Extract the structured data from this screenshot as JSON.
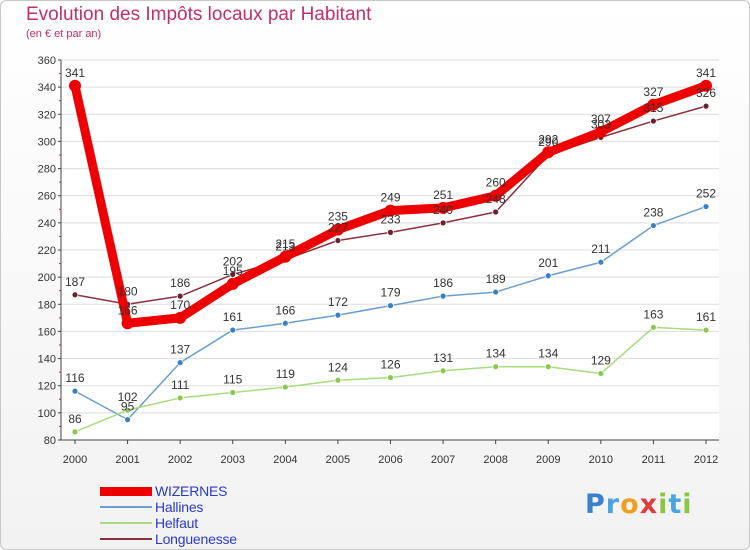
{
  "header": {
    "title": "Evolution des Impôts locaux par Habitant",
    "subtitle": "(en € et par an)"
  },
  "logo": {
    "letters": [
      {
        "char": "P",
        "color": "#3a7fd0"
      },
      {
        "char": "r",
        "color": "#4aa4e0"
      },
      {
        "char": "o",
        "color": "#f0a020"
      },
      {
        "char": "x",
        "color": "#e23b3b"
      },
      {
        "char": "i",
        "color": "#8cc63f"
      },
      {
        "char": "t",
        "color": "#4aa4e0"
      },
      {
        "char": "i",
        "color": "#8cc63f"
      }
    ]
  },
  "chart_data": {
    "type": "line",
    "title": "Evolution des Impôts locaux par Habitant",
    "subtitle": "(en € et par an)",
    "xlabel": "",
    "ylabel": "",
    "categories": [
      "2000",
      "2001",
      "2002",
      "2003",
      "2004",
      "2005",
      "2006",
      "2007",
      "2008",
      "2009",
      "2010",
      "2011",
      "2012"
    ],
    "ylim": [
      80,
      360
    ],
    "yticks": [
      80,
      100,
      120,
      140,
      160,
      180,
      200,
      220,
      240,
      260,
      280,
      300,
      320,
      340,
      360
    ],
    "grid": "horizontal",
    "legend_position": "bottom-left",
    "series": [
      {
        "name": "WIZERNES",
        "color": "#ee0000",
        "marker": "#ee0000",
        "values": [
          341,
          166,
          170,
          195,
          215,
          235,
          249,
          251,
          260,
          292,
          307,
          327,
          341
        ]
      },
      {
        "name": "Hallines",
        "color": "#6a9fd0",
        "marker": "#3a7fc8",
        "values": [
          116,
          95,
          137,
          161,
          166,
          172,
          179,
          186,
          189,
          201,
          211,
          238,
          252
        ]
      },
      {
        "name": "Helfaut",
        "color": "#a8dc80",
        "marker": "#8cc850",
        "values": [
          86,
          102,
          111,
          115,
          119,
          124,
          126,
          131,
          134,
          134,
          129,
          163,
          161
        ]
      },
      {
        "name": "Longuenesse",
        "color": "#8a3040",
        "marker": "#6a2030",
        "values": [
          187,
          180,
          186,
          202,
          213,
          227,
          233,
          240,
          248,
          290,
          303,
          315,
          326
        ]
      }
    ],
    "data_labels": [
      {
        "series": 0,
        "labels": [
          "341",
          "166",
          "170",
          "195",
          "215",
          "235",
          "249",
          "251",
          "260",
          "292",
          "307",
          "327",
          "341"
        ]
      },
      {
        "series": 1,
        "labels": [
          "116",
          "95",
          "137",
          "161",
          "166",
          "172",
          "179",
          "186",
          "189",
          "201",
          "211",
          "238",
          "252"
        ]
      },
      {
        "series": 2,
        "labels": [
          "86",
          "102",
          "111",
          "115",
          "119",
          "124",
          "126",
          "131",
          "134",
          "134",
          "129",
          "163",
          "161"
        ]
      },
      {
        "series": 3,
        "labels": [
          "187",
          "180",
          "186",
          "202",
          "213",
          "227",
          "233",
          "240",
          "248",
          "290",
          "303",
          "315",
          "326"
        ]
      }
    ]
  }
}
